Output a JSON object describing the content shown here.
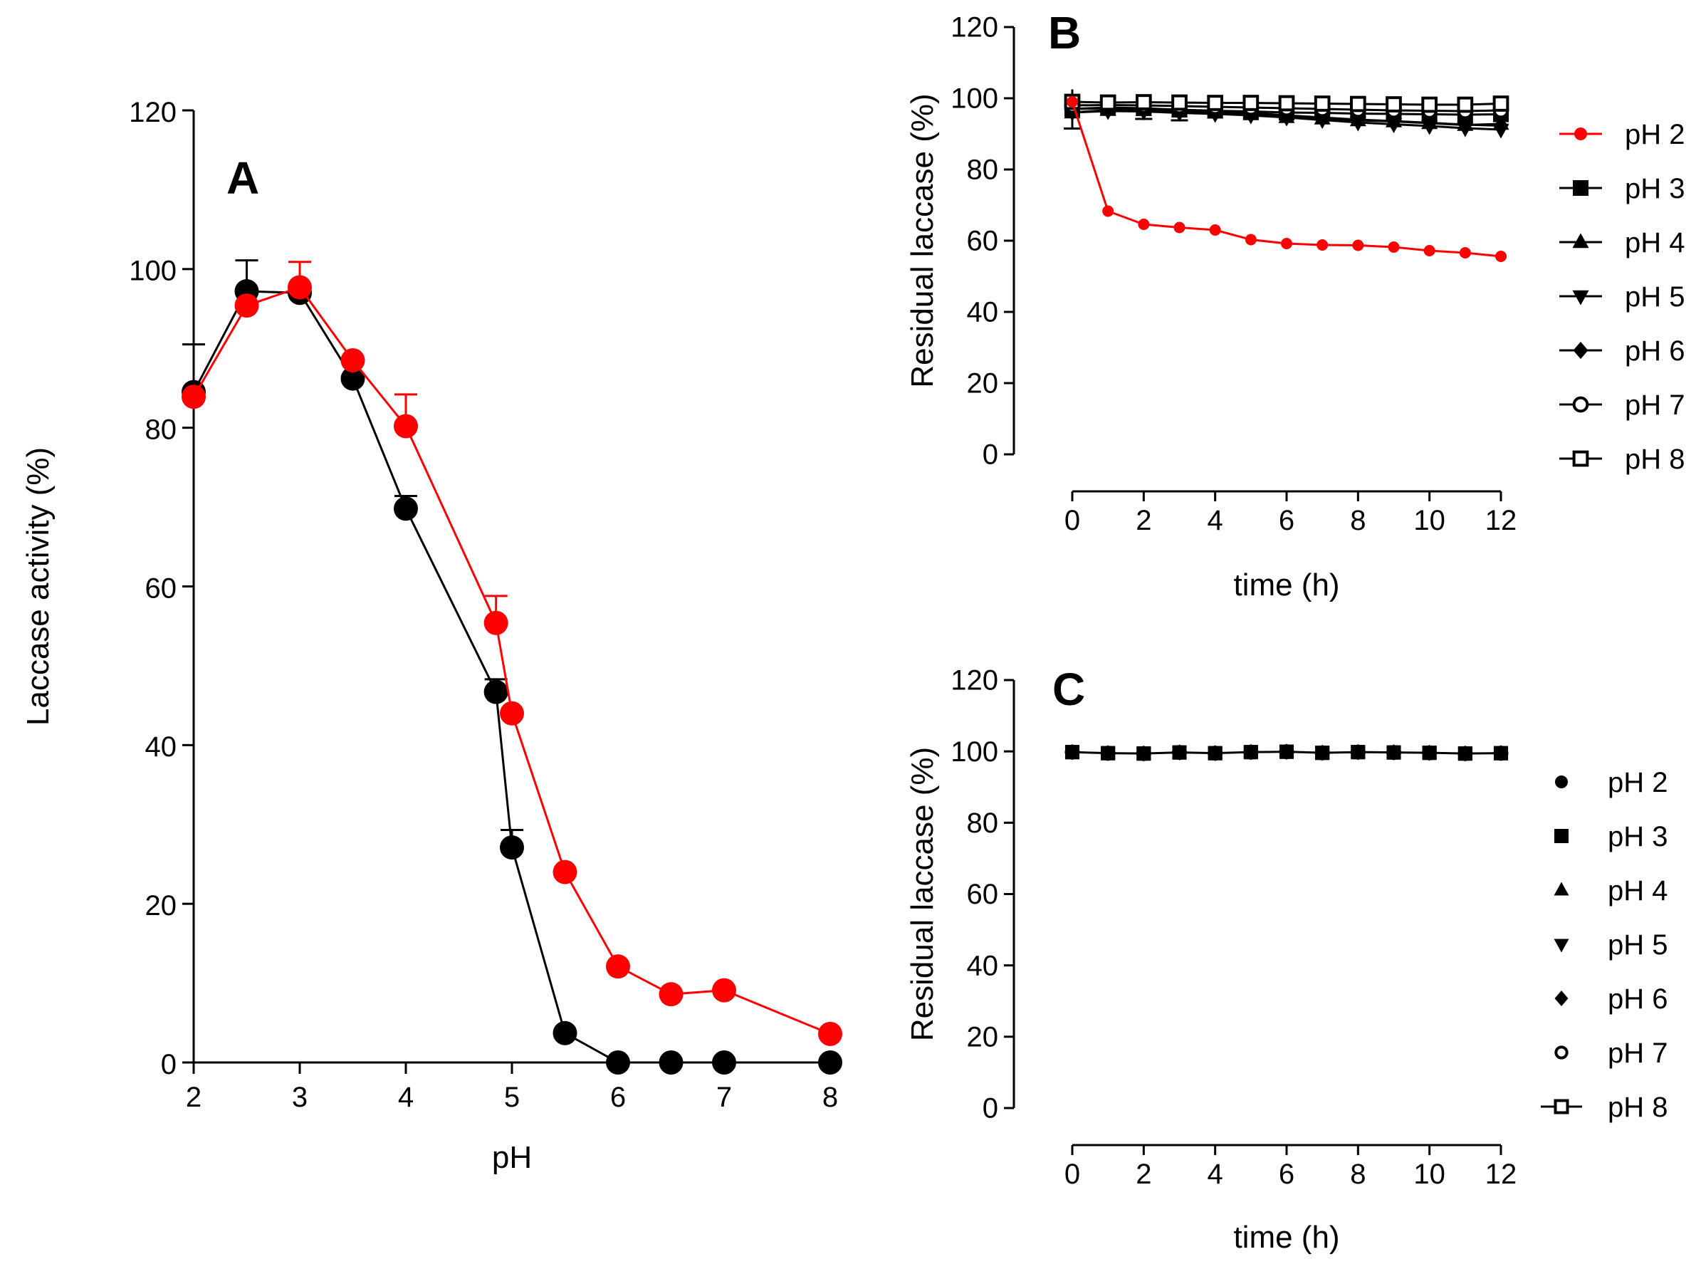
{
  "chart_data": [
    {
      "panel": "A",
      "type": "line",
      "xlabel": "pH",
      "ylabel": "Laccase activity (%)",
      "xlim": [
        2,
        8
      ],
      "ylim": [
        0,
        120
      ],
      "xticks": [
        "2",
        "3",
        "4",
        "5",
        "6",
        "7",
        "8"
      ],
      "yticks": [
        "0",
        "20",
        "40",
        "60",
        "80",
        "100",
        "120"
      ],
      "series": [
        {
          "name": "black",
          "color": "#000000",
          "x": [
            2,
            2.5,
            3,
            3.5,
            4,
            4.85,
            5,
            5.5,
            6,
            6.5,
            7,
            8
          ],
          "values": [
            84.5,
            97.2,
            97.0,
            86.2,
            69.8,
            46.7,
            27.1,
            3.7,
            0,
            0,
            0,
            0
          ],
          "errors": [
            6,
            3.9,
            0,
            0,
            1.6,
            1.6,
            2.2,
            0,
            0,
            0,
            0,
            0
          ]
        },
        {
          "name": "red",
          "color": "#ff0000",
          "x": [
            2,
            2.5,
            3,
            3.5,
            4,
            4.85,
            5,
            5.5,
            6,
            6.5,
            7,
            8
          ],
          "values": [
            83.9,
            95.4,
            97.7,
            88.5,
            80.2,
            55.4,
            44.0,
            24.0,
            12.1,
            8.6,
            9.1,
            3.6
          ],
          "errors": [
            0,
            0,
            3.2,
            0,
            4.0,
            3.4,
            0,
            0,
            0,
            0,
            0,
            0
          ]
        }
      ]
    },
    {
      "panel": "B",
      "type": "line",
      "xlabel": "time (h)",
      "ylabel": "Residual laccase (%)",
      "xlim": [
        0,
        12
      ],
      "ylim": [
        0,
        120
      ],
      "xticks": [
        "0",
        "2",
        "4",
        "6",
        "8",
        "10",
        "12"
      ],
      "yticks": [
        "0",
        "20",
        "40",
        "60",
        "80",
        "100",
        "120"
      ],
      "legend": "right",
      "x": [
        0,
        1,
        2,
        3,
        4,
        5,
        6,
        7,
        8,
        9,
        10,
        11,
        12
      ],
      "series": [
        {
          "name": "pH 2",
          "marker": "circle",
          "color": "#ff0000",
          "values": [
            99,
            68.3,
            64.6,
            63.7,
            63.0,
            60.3,
            59.2,
            58.8,
            58.7,
            58.2,
            57.2,
            56.6,
            55.6
          ]
        },
        {
          "name": "pH 3",
          "marker": "square",
          "color": "#000000",
          "values": [
            97,
            97.4,
            97.2,
            96.8,
            96.5,
            96.3,
            96.0,
            95.9,
            95.7,
            95.6,
            95.5,
            95.4,
            95.5
          ]
        },
        {
          "name": "pH 4",
          "marker": "triangle-up",
          "color": "#000000",
          "values": [
            96,
            96.7,
            96.7,
            96.4,
            96.0,
            95.5,
            94.7,
            94.3,
            93.8,
            93.5,
            93.0,
            92.5,
            92.8
          ]
        },
        {
          "name": "pH 5",
          "marker": "triangle-down",
          "color": "#000000",
          "values": [
            96,
            96.4,
            96.3,
            95.9,
            95.6,
            95.2,
            94.6,
            93.9,
            93.2,
            92.7,
            92.2,
            91.6,
            91.2
          ]
        },
        {
          "name": "pH 6",
          "marker": "diamond",
          "color": "#000000",
          "values": [
            97,
            97.2,
            97.0,
            96.7,
            96.3,
            95.9,
            95.2,
            94.6,
            94.0,
            93.6,
            93.1,
            92.6,
            92.3
          ]
        },
        {
          "name": "pH 7",
          "marker": "circle-open",
          "color": "#000000",
          "values": [
            98,
            98.1,
            98.0,
            97.8,
            97.6,
            97.4,
            97.2,
            97.0,
            96.8,
            96.6,
            96.5,
            96.4,
            96.6
          ]
        },
        {
          "name": "pH 8",
          "marker": "square-open",
          "color": "#000000",
          "values": [
            99,
            98.8,
            98.9,
            98.8,
            98.7,
            98.7,
            98.6,
            98.5,
            98.4,
            98.3,
            98.2,
            98.2,
            98.5
          ]
        }
      ],
      "error_bars": {
        "x": [
          0,
          2,
          3
        ],
        "series": "pH 3",
        "errors": [
          5.5,
          3.0,
          3.0
        ]
      }
    },
    {
      "panel": "C",
      "type": "line",
      "xlabel": "time (h)",
      "ylabel": "Residual laccase (%)",
      "xlim": [
        0,
        12
      ],
      "ylim": [
        0,
        120
      ],
      "xticks": [
        "0",
        "2",
        "4",
        "6",
        "8",
        "10",
        "12"
      ],
      "yticks": [
        "0",
        "20",
        "40",
        "60",
        "80",
        "100",
        "120"
      ],
      "legend": "right",
      "x": [
        0,
        1,
        2,
        3,
        4,
        5,
        6,
        7,
        8,
        9,
        10,
        11,
        12
      ],
      "series": [
        {
          "name": "pH 2",
          "marker": "circle",
          "color": "#000000",
          "line": false,
          "values": [
            99.8,
            99.5,
            99.4,
            99.7,
            99.5,
            99.8,
            99.9,
            99.6,
            99.8,
            99.7,
            99.6,
            99.4,
            99.5
          ]
        },
        {
          "name": "pH 3",
          "marker": "square",
          "color": "#000000",
          "line": false,
          "values": [
            99.8,
            99.5,
            99.4,
            99.7,
            99.5,
            99.8,
            99.9,
            99.6,
            99.8,
            99.7,
            99.6,
            99.4,
            99.5
          ]
        },
        {
          "name": "pH 4",
          "marker": "triangle-up",
          "color": "#000000",
          "line": false,
          "values": [
            99.8,
            99.5,
            99.4,
            99.7,
            99.5,
            99.8,
            99.9,
            99.6,
            99.8,
            99.7,
            99.6,
            99.4,
            99.5
          ]
        },
        {
          "name": "pH 5",
          "marker": "triangle-down",
          "color": "#000000",
          "line": false,
          "values": [
            99.8,
            99.5,
            99.4,
            99.7,
            99.5,
            99.8,
            99.9,
            99.6,
            99.8,
            99.7,
            99.6,
            99.4,
            99.5
          ]
        },
        {
          "name": "pH 6",
          "marker": "diamond",
          "color": "#000000",
          "line": false,
          "values": [
            99.8,
            99.5,
            99.4,
            99.7,
            99.5,
            99.8,
            99.9,
            99.6,
            99.8,
            99.7,
            99.6,
            99.4,
            99.5
          ]
        },
        {
          "name": "pH 7",
          "marker": "circle-open",
          "color": "#000000",
          "line": false,
          "values": [
            99.8,
            99.5,
            99.4,
            99.7,
            99.5,
            99.8,
            99.9,
            99.6,
            99.8,
            99.7,
            99.6,
            99.4,
            99.5
          ]
        },
        {
          "name": "pH 8",
          "marker": "square-open",
          "color": "#000000",
          "line": true,
          "values": [
            99.8,
            99.5,
            99.4,
            99.7,
            99.5,
            99.8,
            99.9,
            99.6,
            99.8,
            99.7,
            99.6,
            99.4,
            99.5
          ]
        }
      ]
    }
  ]
}
